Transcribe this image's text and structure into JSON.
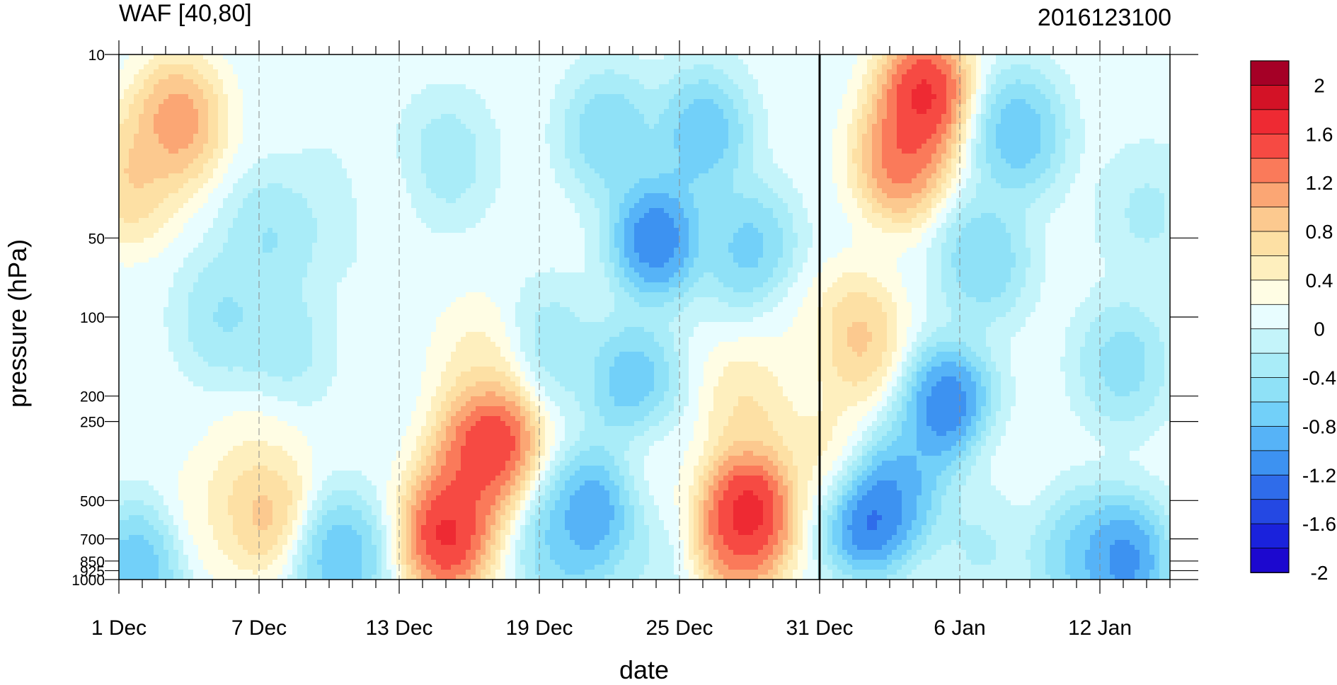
{
  "chart_data": {
    "type": "heatmap",
    "title": "WAF [40,80]",
    "subtitle": "2016123100",
    "xlabel": "date",
    "ylabel": "pressure (hPa)",
    "x_ticks": [
      "1 Dec",
      "7 Dec",
      "13 Dec",
      "19 Dec",
      "25 Dec",
      "31 Dec",
      "6 Jan",
      "12 Jan"
    ],
    "x_tick_days": [
      0,
      6,
      12,
      18,
      24,
      30,
      36,
      42
    ],
    "x_range_days": [
      0,
      45
    ],
    "marked_day": 30,
    "y_scale": "log",
    "y_range": [
      1000,
      10
    ],
    "y_ticks": [
      "10",
      "50",
      "100",
      "200",
      "250",
      "500",
      "700",
      "850",
      "925",
      "1000"
    ],
    "y_tick_values": [
      10,
      50,
      100,
      200,
      250,
      500,
      700,
      850,
      925,
      1000
    ],
    "colorbar": {
      "labels": [
        "2",
        "1.6",
        "1.2",
        "0.8",
        "0.4",
        "0",
        "-0.4",
        "-0.8",
        "-1.2",
        "-1.6",
        "-2"
      ],
      "colors": [
        "#a50026",
        "#d31226",
        "#ee2a33",
        "#f64a43",
        "#fa7a5a",
        "#fba674",
        "#fcc98f",
        "#fde0a4",
        "#feefbe",
        "#fffde4",
        "#e8fdff",
        "#c4f4fa",
        "#a9ecf8",
        "#8fe1f7",
        "#72d0f9",
        "#56b3f7",
        "#3d92f1",
        "#2f6cea",
        "#2448e3",
        "#1a22dc",
        "#1c08cf"
      ]
    },
    "features": [
      {
        "day": 2.5,
        "p": 18,
        "value": 1.2
      },
      {
        "day": 0.5,
        "p": 30,
        "value": 0.8
      },
      {
        "day": 4.5,
        "p": 100,
        "value": -0.6
      },
      {
        "day": 6.5,
        "p": 50,
        "value": -0.6
      },
      {
        "day": 7,
        "p": 130,
        "value": -0.5
      },
      {
        "day": 9,
        "p": 40,
        "value": -0.3
      },
      {
        "day": 11,
        "p": 35,
        "value": 0.05
      },
      {
        "day": 6,
        "p": 300,
        "value": 0.2
      },
      {
        "day": 6,
        "p": 520,
        "value": 1.0
      },
      {
        "day": 4,
        "p": 560,
        "value": 0.25
      },
      {
        "day": 9.5,
        "p": 820,
        "value": -1.0
      },
      {
        "day": 0.8,
        "p": 900,
        "value": -1.0
      },
      {
        "day": 14,
        "p": 680,
        "value": 1.8
      },
      {
        "day": 16,
        "p": 280,
        "value": 1.8
      },
      {
        "day": 15,
        "p": 420,
        "value": 1.2
      },
      {
        "day": 15.5,
        "p": 150,
        "value": 0.4
      },
      {
        "day": 14,
        "p": 25,
        "value": -0.5
      },
      {
        "day": 23,
        "p": 50,
        "value": -1.5
      },
      {
        "day": 25,
        "p": 20,
        "value": -1.0
      },
      {
        "day": 21,
        "p": 20,
        "value": -0.8
      },
      {
        "day": 22,
        "p": 180,
        "value": -1.0
      },
      {
        "day": 18.5,
        "p": 130,
        "value": -0.5
      },
      {
        "day": 20.5,
        "p": 550,
        "value": -1.3
      },
      {
        "day": 19,
        "p": 750,
        "value": -0.8
      },
      {
        "day": 22.5,
        "p": 900,
        "value": -0.3
      },
      {
        "day": 23,
        "p": 380,
        "value": 0.1
      },
      {
        "day": 27,
        "p": 520,
        "value": 1.8
      },
      {
        "day": 27,
        "p": 220,
        "value": 0.6
      },
      {
        "day": 27,
        "p": 55,
        "value": -0.9
      },
      {
        "day": 26.5,
        "p": 700,
        "value": 1.3
      },
      {
        "day": 29,
        "p": 120,
        "value": 0.1
      },
      {
        "day": 30.5,
        "p": 350,
        "value": 0.5
      },
      {
        "day": 31.5,
        "p": 120,
        "value": 0.9
      },
      {
        "day": 33.5,
        "p": 25,
        "value": 1.4
      },
      {
        "day": 34.5,
        "p": 14,
        "value": 1.8
      },
      {
        "day": 33.5,
        "p": 450,
        "value": -1.0
      },
      {
        "day": 32,
        "p": 550,
        "value": -1.7
      },
      {
        "day": 35.5,
        "p": 220,
        "value": -1.5
      },
      {
        "day": 38.5,
        "p": 20,
        "value": -1.0
      },
      {
        "day": 37,
        "p": 60,
        "value": -0.8
      },
      {
        "day": 38,
        "p": 380,
        "value": 0.05
      },
      {
        "day": 37,
        "p": 700,
        "value": -0.4
      },
      {
        "day": 41,
        "p": 800,
        "value": -0.8
      },
      {
        "day": 43,
        "p": 850,
        "value": -1.4
      },
      {
        "day": 43,
        "p": 150,
        "value": -0.7
      },
      {
        "day": 44,
        "p": 40,
        "value": -0.4
      }
    ]
  }
}
